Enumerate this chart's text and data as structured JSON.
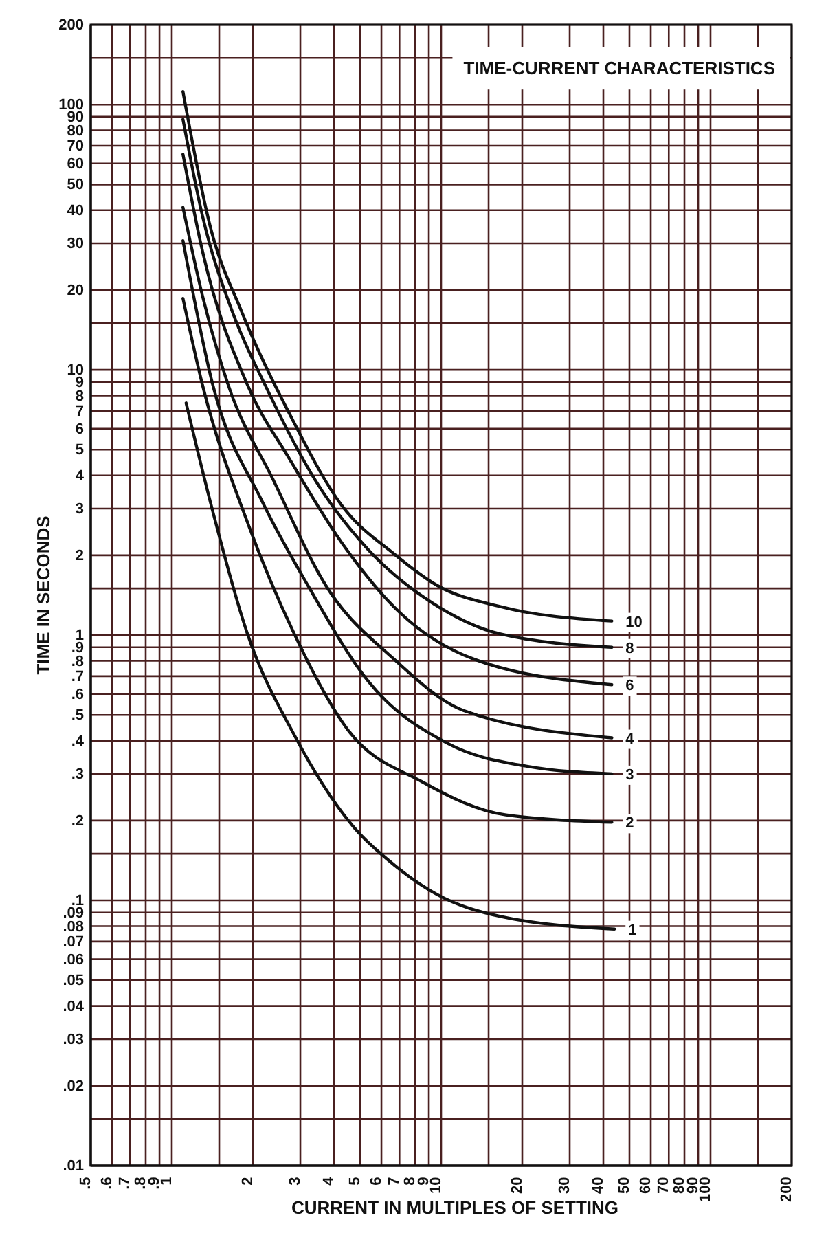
{
  "chart_data": {
    "type": "line",
    "title": "TIME-CURRENT CHARACTERISTICS",
    "xlabel": "CURRENT IN MULTIPLES OF SETTING",
    "ylabel": "TIME IN SECONDS",
    "log": "xy",
    "grid": true,
    "legend": false,
    "marker": "none",
    "line_style": "solid",
    "xlim": [
      0.5,
      200
    ],
    "ylim": [
      0.01,
      200
    ],
    "xticks": [
      {
        "value": 0.5,
        "label": ".5"
      },
      {
        "value": 0.6,
        "label": ".6"
      },
      {
        "value": 0.7,
        "label": ".7"
      },
      {
        "value": 0.8,
        "label": ".8"
      },
      {
        "value": 0.9,
        "label": ".9"
      },
      1,
      {
        "value": 1.5,
        "label": null
      },
      2,
      3,
      4,
      5,
      6,
      7,
      8,
      9,
      10,
      {
        "value": 15,
        "label": null
      },
      20,
      30,
      40,
      50,
      60,
      70,
      80,
      90,
      100,
      {
        "value": 150,
        "label": null
      },
      200
    ],
    "yticks": [
      {
        "value": 0.01,
        "label": ".01"
      },
      {
        "value": 0.015,
        "label": null
      },
      {
        "value": 0.02,
        "label": ".02"
      },
      {
        "value": 0.03,
        "label": ".03"
      },
      {
        "value": 0.04,
        "label": ".04"
      },
      {
        "value": 0.05,
        "label": ".05"
      },
      {
        "value": 0.06,
        "label": ".06"
      },
      {
        "value": 0.07,
        "label": ".07"
      },
      {
        "value": 0.08,
        "label": ".08"
      },
      {
        "value": 0.09,
        "label": ".09"
      },
      {
        "value": 0.1,
        "label": ".1"
      },
      {
        "value": 0.15,
        "label": null
      },
      {
        "value": 0.2,
        "label": ".2"
      },
      {
        "value": 0.3,
        "label": ".3"
      },
      {
        "value": 0.4,
        "label": ".4"
      },
      {
        "value": 0.5,
        "label": ".5"
      },
      {
        "value": 0.6,
        "label": ".6"
      },
      {
        "value": 0.7,
        "label": ".7"
      },
      {
        "value": 0.8,
        "label": ".8"
      },
      {
        "value": 0.9,
        "label": ".9"
      },
      1,
      {
        "value": 1.5,
        "label": null
      },
      2,
      3,
      4,
      5,
      6,
      7,
      8,
      9,
      10,
      {
        "value": 15,
        "label": null
      },
      20,
      30,
      40,
      50,
      60,
      70,
      80,
      90,
      100,
      {
        "value": 150,
        "label": null
      },
      200
    ],
    "series": [
      {
        "name": "10",
        "color": "#111111",
        "x": [
          1.1,
          1.39,
          1.82,
          2.72,
          4.29,
          6.7,
          9.66,
          16.6,
          43
        ],
        "values": [
          112,
          34.6,
          16.5,
          6.9,
          3.07,
          2.02,
          1.54,
          1.28,
          1.13
        ]
      },
      {
        "name": "8",
        "color": "#111111",
        "x": [
          1.1,
          1.3,
          1.7,
          2.22,
          3.43,
          5.36,
          9.2,
          16.6,
          43
        ],
        "values": [
          88,
          38,
          16,
          8.77,
          3.8,
          2.1,
          1.33,
          1.01,
          0.9
        ]
      },
      {
        "name": "6",
        "color": "#111111",
        "x": [
          1.1,
          1.3,
          1.91,
          2.74,
          4.29,
          7.0,
          13.3,
          43
        ],
        "values": [
          65,
          28,
          8.77,
          4.6,
          2.22,
          1.22,
          0.81,
          0.65
        ]
      },
      {
        "name": "4",
        "color": "#111111",
        "x": [
          1.1,
          1.3,
          1.62,
          2.38,
          3.73,
          6.7,
          12.1,
          43
        ],
        "values": [
          41,
          19,
          8.77,
          3.85,
          1.54,
          0.81,
          0.52,
          0.41
        ]
      },
      {
        "name": "3",
        "color": "#111111",
        "x": [
          1.1,
          1.42,
          2.17,
          3.2,
          5.36,
          10.6,
          21,
          43
        ],
        "values": [
          30.7,
          8.77,
          3.18,
          1.54,
          0.67,
          0.39,
          0.32,
          0.3
        ]
      },
      {
        "name": "2",
        "color": "#111111",
        "x": [
          1.1,
          1.3,
          1.91,
          2.85,
          4.5,
          8.5,
          17.4,
          43
        ],
        "values": [
          18.6,
          8.77,
          2.66,
          1.01,
          0.44,
          0.28,
          0.21,
          0.197
        ]
      },
      {
        "name": "1",
        "color": "#111111",
        "x": [
          1.13,
          1.39,
          1.91,
          2.85,
          4.94,
          6.2,
          9.7,
          16.6,
          44
        ],
        "values": [
          7.5,
          3.18,
          1.01,
          0.42,
          0.18,
          0.145,
          0.105,
          0.087,
          0.078
        ]
      }
    ]
  }
}
